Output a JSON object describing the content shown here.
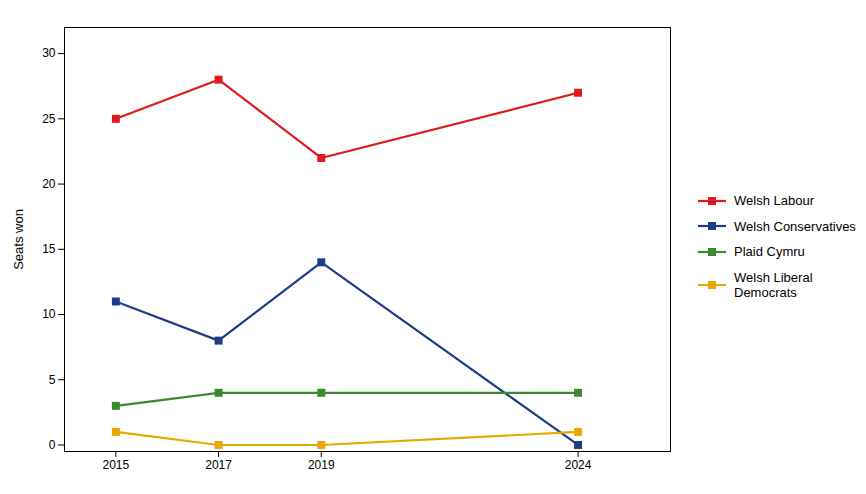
{
  "chart_data": {
    "type": "line",
    "x": [
      2015,
      2017,
      2019,
      2024
    ],
    "series": [
      {
        "name": "Welsh Labour",
        "color": "#e0191e",
        "marker": "square",
        "values": [
          25,
          28,
          22,
          27
        ]
      },
      {
        "name": "Welsh Conservatives",
        "color": "#1e3d87",
        "marker": "square",
        "values": [
          11,
          8,
          14,
          0
        ]
      },
      {
        "name": "Plaid Cymru",
        "color": "#3a8a2e",
        "marker": "square",
        "values": [
          3,
          4,
          4,
          4
        ]
      },
      {
        "name": "Welsh Liberal\nDemocrats",
        "color": "#e8a800",
        "marker": "square",
        "values": [
          1,
          0,
          0,
          1
        ]
      }
    ],
    "y_label": "Seats won",
    "xlim": [
      2014.0,
      2025.8
    ],
    "xticks": [
      2015,
      2017,
      2019,
      2024
    ],
    "ylim": [
      -0.5,
      32
    ],
    "yticks": [
      0,
      5,
      10,
      15,
      20,
      25,
      30
    ],
    "grid": false,
    "legend": "right"
  }
}
